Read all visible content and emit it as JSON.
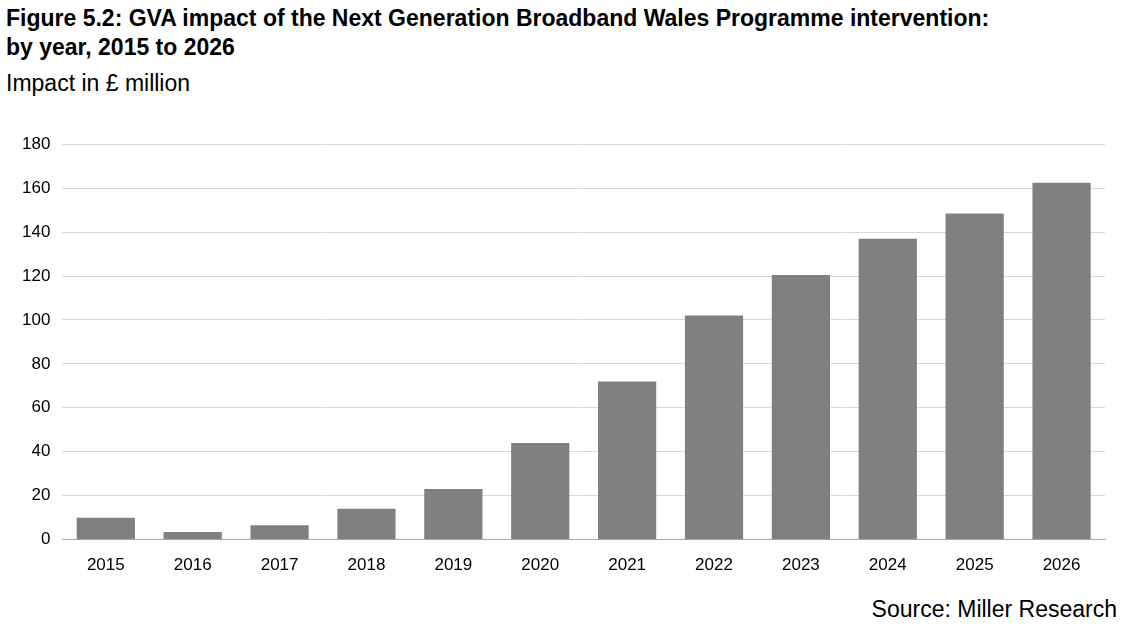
{
  "chart_data": {
    "type": "bar",
    "title": "Figure 5.2: GVA impact of the Next Generation Broadband Wales Programme intervention: by year, 2015 to 2026",
    "subtitle": "Impact in £ million",
    "annotations": [
      "Source: Miller Research"
    ],
    "categories": [
      "2015",
      "2016",
      "2017",
      "2018",
      "2019",
      "2020",
      "2021",
      "2022",
      "2023",
      "2024",
      "2025",
      "2026"
    ],
    "values": [
      10,
      3.5,
      6.5,
      14,
      23,
      44,
      72,
      102,
      120.5,
      137,
      148.5,
      162.5
    ],
    "color": "#808080",
    "ylim": [
      0,
      180
    ],
    "yticks": [
      0,
      20,
      40,
      60,
      80,
      100,
      120,
      140,
      160,
      180
    ],
    "grid": true
  }
}
